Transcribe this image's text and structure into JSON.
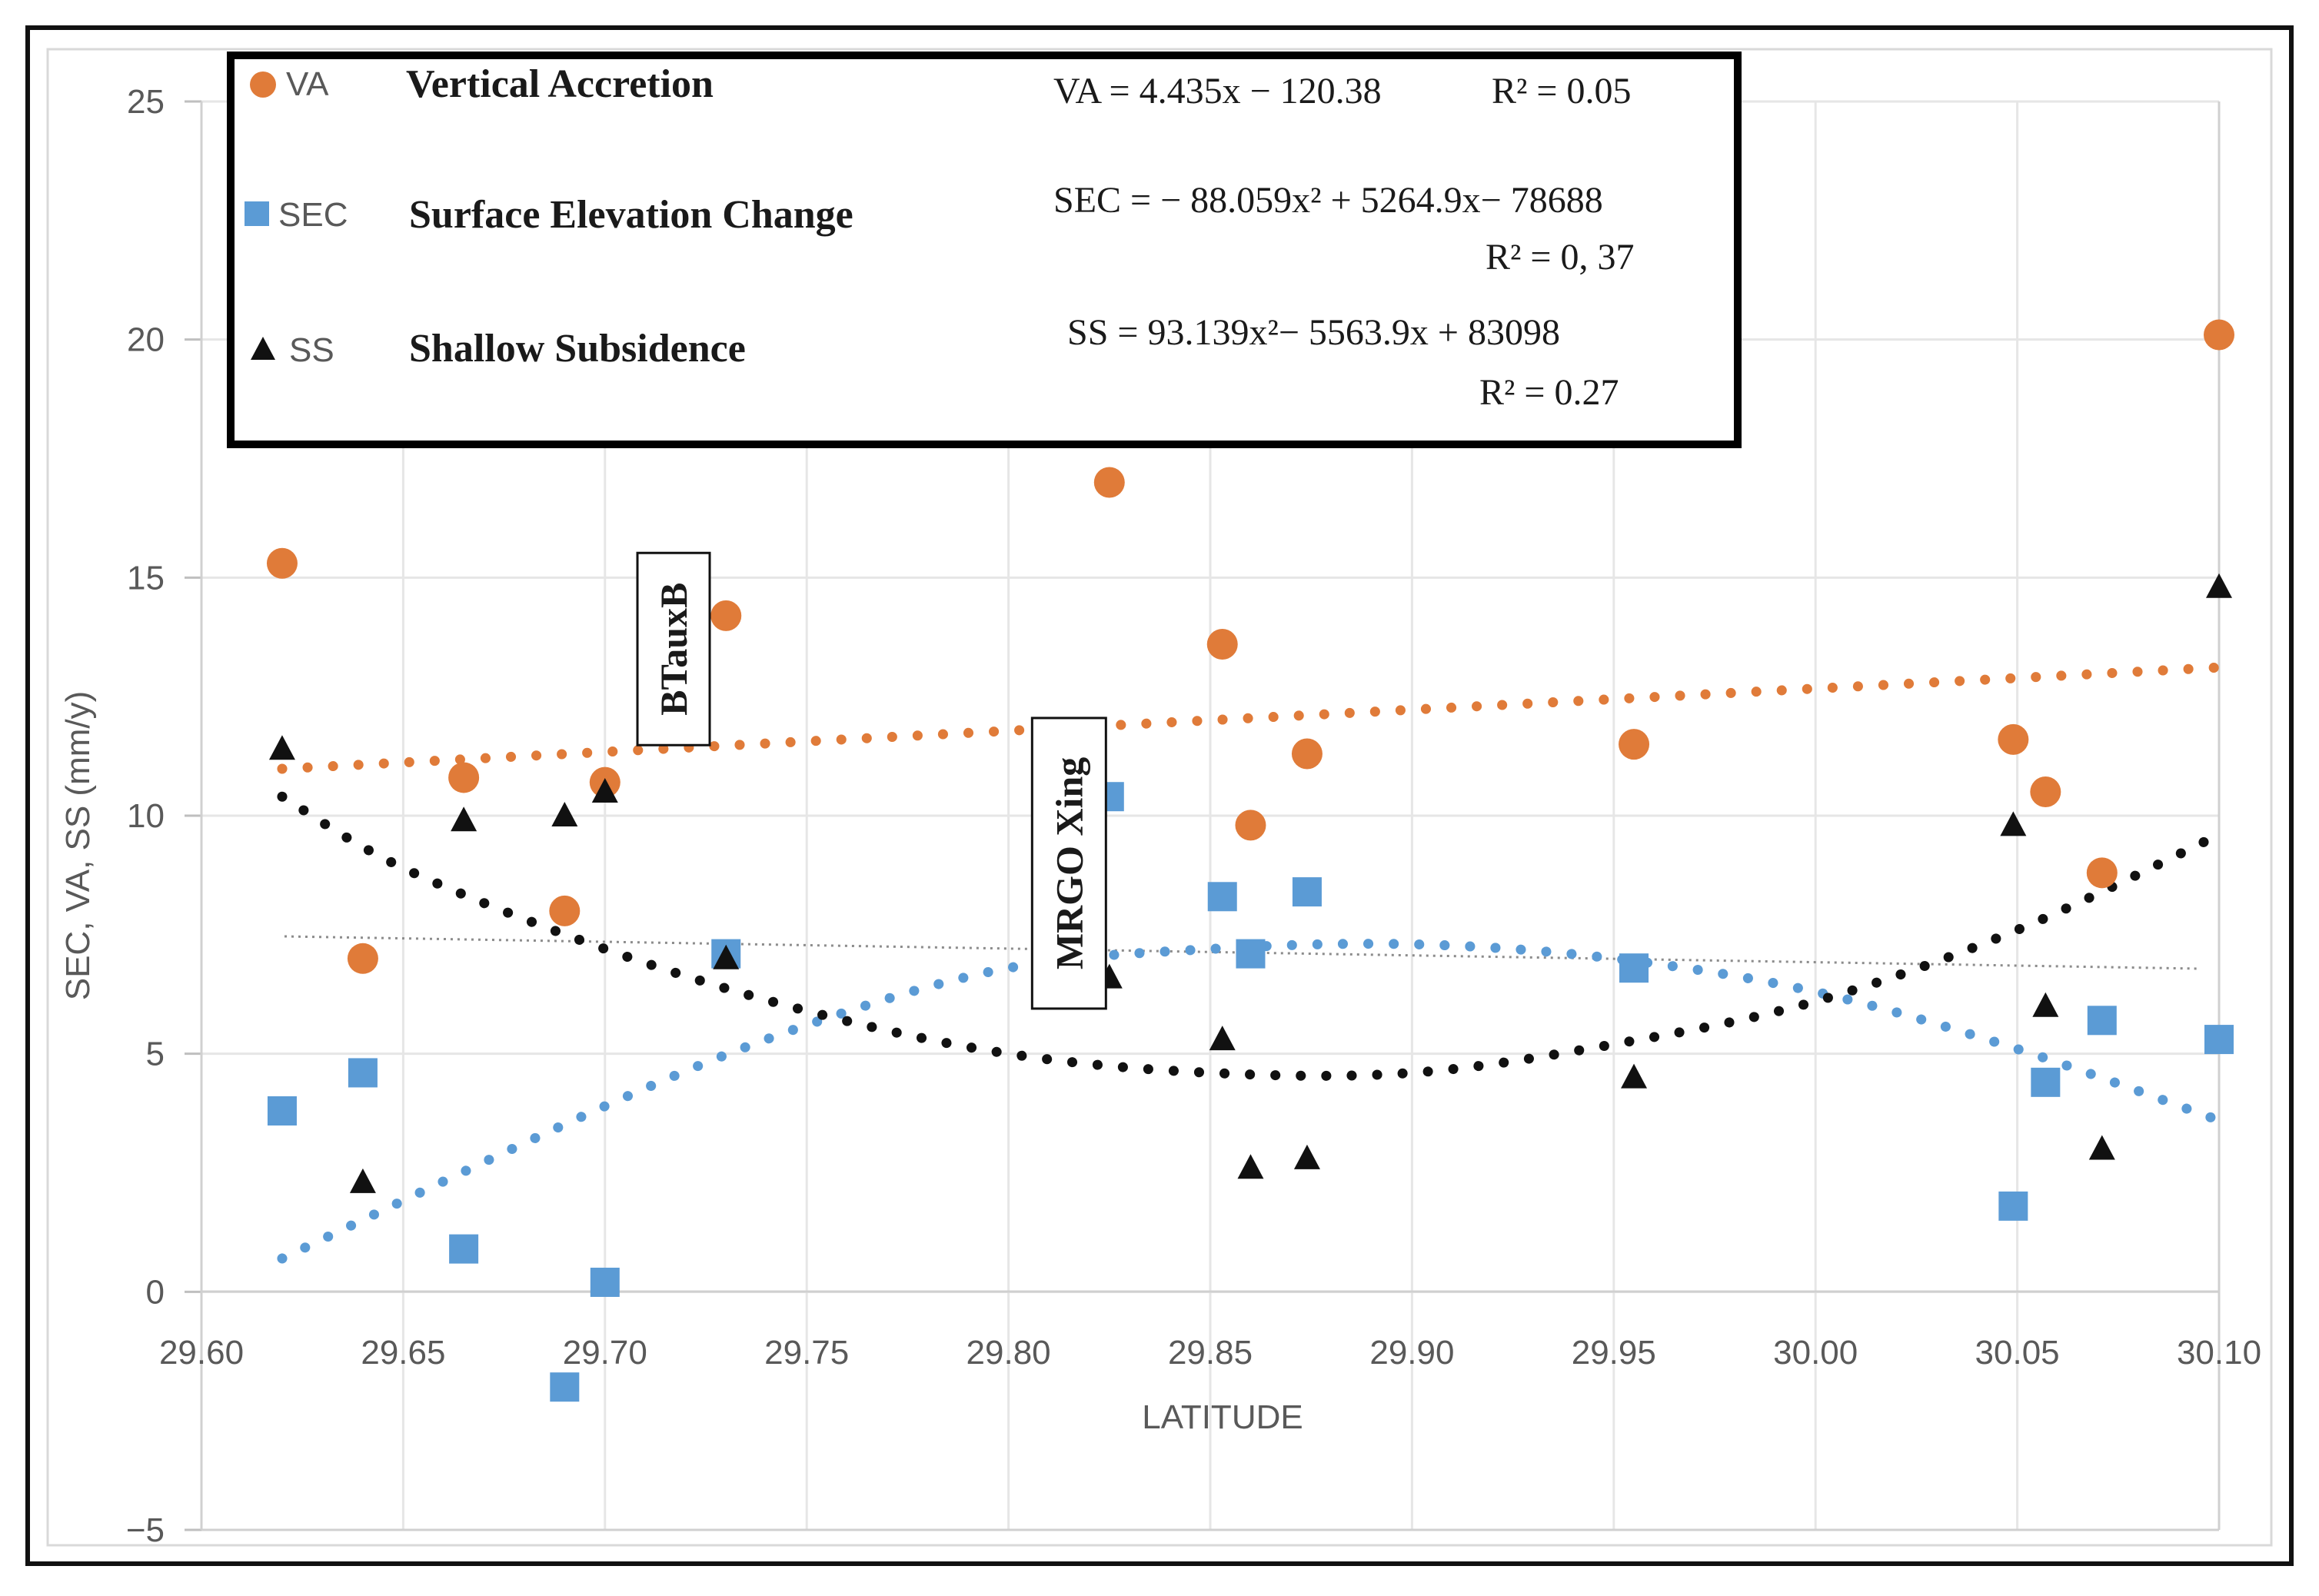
{
  "chart_data": {
    "type": "scatter",
    "xlabel": "LATITUDE",
    "ylabel": "SEC, VA, SS (mm/y)",
    "xlim": [
      29.6,
      30.1
    ],
    "ylim": [
      -5,
      25
    ],
    "x_ticks": [
      "29.60",
      "29.65",
      "29.70",
      "29.75",
      "29.80",
      "29.85",
      "29.90",
      "29.95",
      "30.00",
      "30.05",
      "30.10"
    ],
    "y_ticks": [
      "25",
      "20",
      "15",
      "10",
      "5",
      "0",
      "−5"
    ],
    "grid": true,
    "legend_position": "top",
    "series": [
      {
        "key": "VA",
        "abbr": "VA",
        "name": "Vertical Accretion",
        "marker": "circle",
        "color": "#e07b39",
        "equation": "VA = 4.435x − 120.38",
        "r2_label": "R² = 0.05",
        "x": [
          29.62,
          29.64,
          29.665,
          29.69,
          29.7,
          29.73,
          29.825,
          29.853,
          29.86,
          29.874,
          29.955,
          30.049,
          30.057,
          30.071,
          30.1
        ],
        "y": [
          15.3,
          7.0,
          10.8,
          8.0,
          10.7,
          14.2,
          17.0,
          13.6,
          9.8,
          11.3,
          11.5,
          11.6,
          10.5,
          8.8,
          20.1
        ],
        "trend": {
          "kind": "linear",
          "a": 4.435,
          "b": -120.38
        }
      },
      {
        "key": "SEC",
        "abbr": "SEC",
        "name": "Surface Elevation Change",
        "marker": "square",
        "color": "#5b9bd5",
        "equation": "SEC = − 88.059x² + 5264.9x− 78688",
        "r2_label": "R² = 0, 37",
        "x": [
          29.62,
          29.64,
          29.665,
          29.69,
          29.7,
          29.73,
          29.825,
          29.853,
          29.86,
          29.874,
          29.955,
          30.049,
          30.057,
          30.071,
          30.1
        ],
        "y": [
          3.8,
          4.6,
          0.9,
          -2.0,
          0.2,
          7.1,
          10.4,
          8.3,
          7.1,
          8.4,
          6.8,
          1.8,
          4.4,
          5.7,
          5.3
        ],
        "trend": {
          "kind": "poly2",
          "points": [
            [
              29.62,
              0.7
            ],
            [
              29.7,
              3.9
            ],
            [
              29.75,
              5.6
            ],
            [
              29.8,
              6.8
            ],
            [
              29.85,
              7.2
            ],
            [
              29.9,
              7.3
            ],
            [
              29.95,
              7.0
            ],
            [
              30.0,
              6.3
            ],
            [
              30.05,
              5.1
            ],
            [
              30.1,
              3.6
            ]
          ]
        }
      },
      {
        "key": "SS",
        "abbr": "SS",
        "name": "Shallow Subsidence",
        "marker": "triangle",
        "color": "#111111",
        "equation": "SS = 93.139x²− 5563.9x + 83098",
        "r2_label": "R² = 0.27",
        "x": [
          29.62,
          29.64,
          29.665,
          29.69,
          29.7,
          29.73,
          29.825,
          29.853,
          29.86,
          29.874,
          29.955,
          30.049,
          30.057,
          30.071,
          30.1
        ],
        "y": [
          11.4,
          2.3,
          9.9,
          10.0,
          10.5,
          7.0,
          6.6,
          5.3,
          2.6,
          2.8,
          4.5,
          9.8,
          6.0,
          3.0,
          14.8
        ],
        "trend": {
          "kind": "poly2",
          "points": [
            [
              29.62,
              10.4
            ],
            [
              29.65,
              8.9
            ],
            [
              29.7,
              7.2
            ],
            [
              29.75,
              5.9
            ],
            [
              29.8,
              5.0
            ],
            [
              29.85,
              4.6
            ],
            [
              29.9,
              4.6
            ],
            [
              29.95,
              5.2
            ],
            [
              30.0,
              6.1
            ],
            [
              30.05,
              7.6
            ],
            [
              30.1,
              9.6
            ]
          ]
        }
      }
    ],
    "annotations": [
      {
        "text": "BTauxB",
        "x": 29.717,
        "y": 13.5
      },
      {
        "text": "MRGO Xing",
        "x": 29.815,
        "y": 9.0
      }
    ]
  }
}
